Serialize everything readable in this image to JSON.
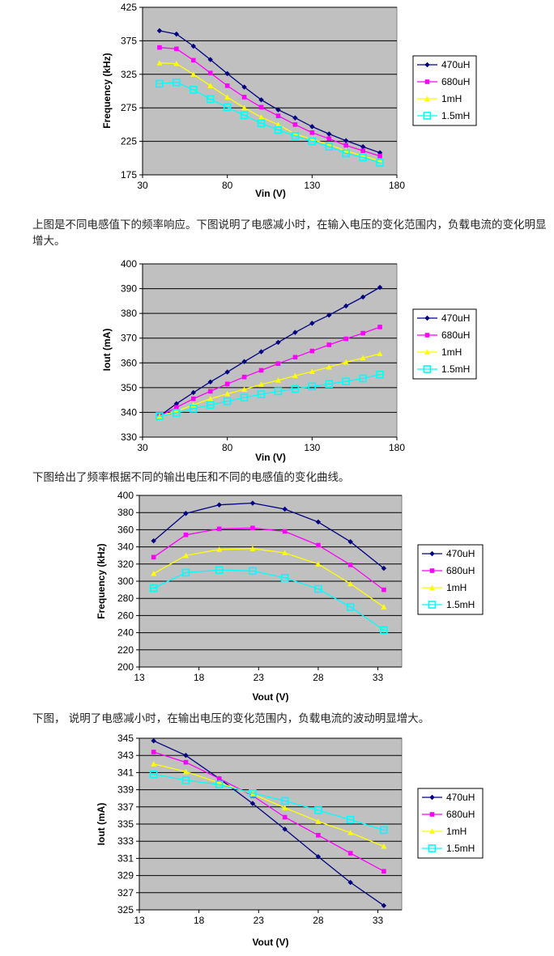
{
  "captions": [
    "上图是不同电感值下的频率响应。下图说明了电感减小时，在输入电压的变化范围内，负载电流的变化明显增大。",
    "下图给出了频率根据不同的输出电压和不同的电感值的变化曲线。",
    "下图， 说明了电感减小时，在输出电压的变化范围内，负载电流的波动明显增大。"
  ],
  "chart_data": [
    {
      "type": "line",
      "title": "",
      "xlabel": "Vin (V)",
      "ylabel": "Frequency (kHz)",
      "xlim": [
        30,
        180
      ],
      "ylim": [
        175,
        425
      ],
      "xticks": [
        30,
        80,
        130,
        180
      ],
      "yticks": [
        175,
        225,
        275,
        325,
        375,
        425
      ],
      "grid": true,
      "legend": "right",
      "x": [
        40,
        50,
        60,
        70,
        80,
        90,
        100,
        110,
        120,
        130,
        140,
        150,
        160,
        170
      ],
      "series": [
        {
          "name": "470uH",
          "color": "#000080",
          "marker": "diamond",
          "values": [
            390,
            385,
            367,
            347,
            326,
            306,
            287,
            272,
            260,
            247,
            236,
            226,
            217,
            208
          ]
        },
        {
          "name": "680uH",
          "color": "#ff00ff",
          "marker": "square",
          "values": [
            365,
            363,
            346,
            327,
            308,
            291,
            276,
            263,
            250,
            238,
            229,
            219,
            211,
            203
          ]
        },
        {
          "name": "1mH",
          "color": "#ffff00",
          "marker": "triangle",
          "values": [
            342,
            341,
            325,
            308,
            291,
            275,
            261,
            250,
            236,
            228,
            220,
            211,
            203,
            196
          ]
        },
        {
          "name": "1.5mH",
          "color": "#00ffff",
          "marker": "open-square",
          "values": [
            311,
            313,
            302,
            288,
            276,
            264,
            252,
            242,
            233,
            225,
            217,
            207,
            201,
            193
          ]
        }
      ]
    },
    {
      "type": "line",
      "title": "",
      "xlabel": "Vin (V)",
      "ylabel": "Iout (mA)",
      "xlim": [
        30,
        180
      ],
      "ylim": [
        330,
        400
      ],
      "xticks": [
        30,
        80,
        130,
        180
      ],
      "yticks": [
        330,
        340,
        350,
        360,
        370,
        380,
        390,
        400
      ],
      "grid": true,
      "legend": "right",
      "x": [
        40,
        50,
        60,
        70,
        80,
        90,
        100,
        110,
        120,
        130,
        140,
        150,
        160,
        170
      ],
      "series": [
        {
          "name": "470uH",
          "color": "#000080",
          "marker": "diamond",
          "values": [
            338.5,
            343.5,
            348,
            352.3,
            356.3,
            360.5,
            364.5,
            368.3,
            372.3,
            376,
            379.3,
            383,
            386.6,
            390.5
          ]
        },
        {
          "name": "680uH",
          "color": "#ff00ff",
          "marker": "square",
          "values": [
            338.5,
            342,
            345.5,
            348.5,
            351.5,
            354.3,
            357,
            359.7,
            362.3,
            364.8,
            367.3,
            369.7,
            372,
            374.5
          ]
        },
        {
          "name": "1mH",
          "color": "#ffff00",
          "marker": "triangle",
          "values": [
            338.5,
            340.5,
            343,
            345.5,
            347.5,
            349.3,
            351.3,
            353,
            354.8,
            356.5,
            358.3,
            360.3,
            362,
            363.7
          ]
        },
        {
          "name": "1.5mH",
          "color": "#00ffff",
          "marker": "open-square",
          "values": [
            338.5,
            339.8,
            341.5,
            343,
            344.5,
            346,
            347.3,
            348.5,
            349.5,
            350.5,
            351.5,
            352.5,
            353.7,
            355.3
          ]
        }
      ]
    },
    {
      "type": "line",
      "title": "",
      "xlabel": "Vout (V)",
      "ylabel": "Frequency (kHz)",
      "xlim": [
        13,
        35
      ],
      "ylim": [
        200,
        400
      ],
      "xticks": [
        13,
        18,
        23,
        28,
        33
      ],
      "yticks": [
        200,
        220,
        240,
        260,
        280,
        300,
        320,
        340,
        360,
        380,
        400
      ],
      "grid": true,
      "legend": "right",
      "x": [
        14.2,
        16.9,
        19.7,
        22.5,
        25.2,
        28,
        30.7,
        33.5
      ],
      "series": [
        {
          "name": "470uH",
          "color": "#000080",
          "marker": "diamond",
          "values": [
            347,
            379,
            389,
            391,
            384,
            369,
            346,
            315
          ]
        },
        {
          "name": "680uH",
          "color": "#ff00ff",
          "marker": "square",
          "values": [
            328,
            354,
            361,
            362,
            358,
            342,
            319,
            290
          ]
        },
        {
          "name": "1mH",
          "color": "#ffff00",
          "marker": "triangle",
          "values": [
            309,
            330,
            337,
            338,
            333,
            320,
            297,
            270
          ]
        },
        {
          "name": "1.5mH",
          "color": "#00ffff",
          "marker": "open-square",
          "values": [
            292,
            310,
            313,
            312,
            304,
            291,
            270,
            243
          ]
        }
      ]
    },
    {
      "type": "line",
      "title": "",
      "xlabel": "Vout (V)",
      "ylabel": "Iout (mA)",
      "xlim": [
        13,
        35
      ],
      "ylim": [
        325,
        345
      ],
      "xticks": [
        13,
        18,
        23,
        28,
        33
      ],
      "yticks": [
        325,
        327,
        329,
        331,
        333,
        335,
        337,
        339,
        341,
        343,
        345
      ],
      "grid": true,
      "legend": "right",
      "x": [
        14.2,
        16.9,
        19.7,
        22.5,
        25.2,
        28,
        30.7,
        33.5
      ],
      "series": [
        {
          "name": "470uH",
          "color": "#000080",
          "marker": "diamond",
          "values": [
            344.7,
            343,
            340.3,
            337.4,
            334.4,
            331.2,
            328.2,
            325.5
          ]
        },
        {
          "name": "680uH",
          "color": "#ff00ff",
          "marker": "square",
          "values": [
            343.4,
            342.2,
            340.3,
            338.3,
            335.8,
            333.7,
            331.6,
            329.5
          ]
        },
        {
          "name": "1mH",
          "color": "#ffff00",
          "marker": "triangle",
          "values": [
            342,
            341.1,
            339.8,
            338.5,
            336.9,
            335.3,
            334,
            332.4
          ]
        },
        {
          "name": "1.5mH",
          "color": "#00ffff",
          "marker": "open-square",
          "values": [
            340.8,
            340.1,
            339.6,
            338.6,
            337.7,
            336.6,
            335.5,
            334.3
          ]
        }
      ]
    }
  ]
}
